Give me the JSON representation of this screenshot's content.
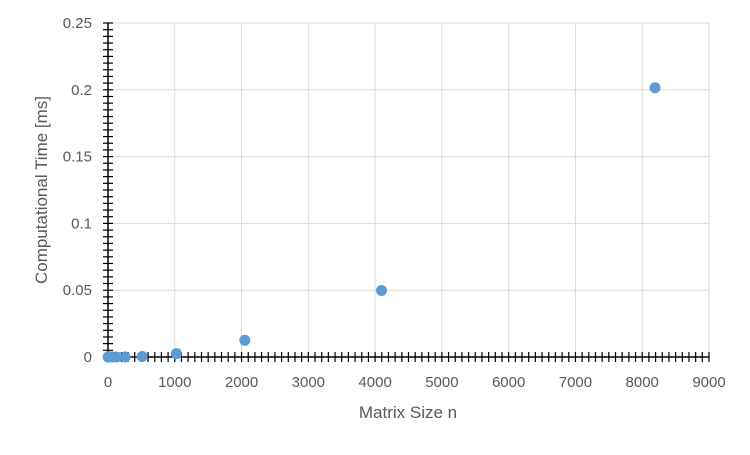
{
  "chart_data": {
    "type": "scatter",
    "title": "",
    "xlabel": "Matrix Size n",
    "ylabel": "Computational Time [ms]",
    "xlim": [
      0,
      9000
    ],
    "ylim": [
      0,
      0.25
    ],
    "x_ticks": [
      0,
      1000,
      2000,
      3000,
      4000,
      5000,
      6000,
      7000,
      8000,
      9000
    ],
    "y_ticks": [
      0,
      0.05,
      0.1,
      0.15,
      0.2,
      0.25
    ],
    "x_tick_labels": [
      "0",
      "1000",
      "2000",
      "3000",
      "4000",
      "5000",
      "6000",
      "7000",
      "8000",
      "9000"
    ],
    "y_tick_labels": [
      "0",
      "0.05",
      "0.1",
      "0.15",
      "0.2",
      "0.25"
    ],
    "grid": true,
    "legend": "none",
    "series": [
      {
        "color": "#5B9BD5",
        "points": [
          {
            "x": 2,
            "y": 0.0
          },
          {
            "x": 4,
            "y": 0.0
          },
          {
            "x": 8,
            "y": 0.0
          },
          {
            "x": 16,
            "y": 0.0
          },
          {
            "x": 32,
            "y": 0.0
          },
          {
            "x": 64,
            "y": 0.0
          },
          {
            "x": 128,
            "y": 0.0
          },
          {
            "x": 256,
            "y": 0.0
          },
          {
            "x": 512,
            "y": 0.0004
          },
          {
            "x": 1024,
            "y": 0.0025
          },
          {
            "x": 2048,
            "y": 0.0125
          },
          {
            "x": 4096,
            "y": 0.0498
          },
          {
            "x": 8192,
            "y": 0.2015
          }
        ]
      }
    ]
  }
}
